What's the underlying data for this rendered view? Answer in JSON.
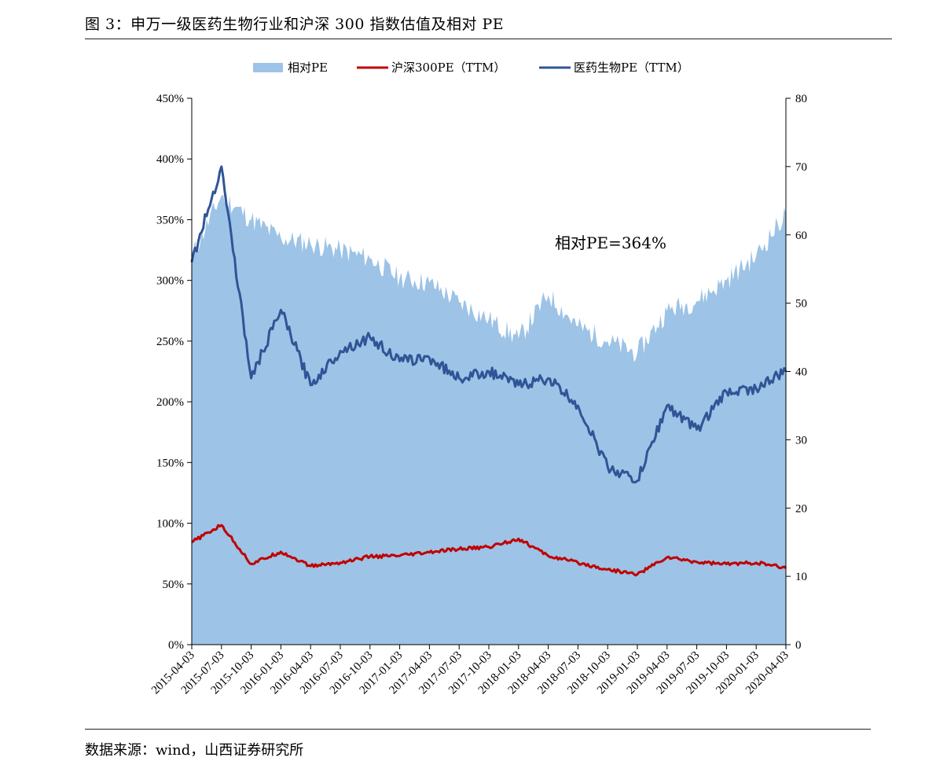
{
  "title": "图 3：申万一级医药生物行业和沪深 300 指数估值及相对 PE",
  "source": "数据来源：wind，山西证券研究所",
  "chart_data": {
    "type": "area",
    "x": [
      "2015-04-03",
      "2015-07-03",
      "2015-10-03",
      "2016-01-03",
      "2016-04-03",
      "2016-07-03",
      "2016-10-03",
      "2017-01-03",
      "2017-04-03",
      "2017-07-03",
      "2017-10-03",
      "2018-01-03",
      "2018-04-03",
      "2018-07-03",
      "2018-10-03",
      "2019-01-03",
      "2019-04-03",
      "2019-07-03",
      "2019-10-03",
      "2020-01-03",
      "2020-04-03"
    ],
    "left_axis": {
      "ylim": [
        0,
        450
      ],
      "ticks": [
        "0%",
        "50%",
        "100%",
        "150%",
        "200%",
        "250%",
        "300%",
        "350%",
        "400%",
        "450%"
      ]
    },
    "right_axis": {
      "ylim": [
        0,
        80
      ],
      "ticks": [
        "0",
        "10",
        "20",
        "30",
        "40",
        "50",
        "60",
        "70",
        "80"
      ]
    },
    "annotation": "相对PE=364%",
    "legend_position": "top-center",
    "series": [
      {
        "name": "相对PE",
        "type": "area",
        "axis": "left",
        "color": "#9DC3E6",
        "values": [
          320,
          370,
          350,
          335,
          330,
          325,
          318,
          302,
          298,
          282,
          268,
          252,
          288,
          262,
          250,
          240,
          275,
          283,
          300,
          320,
          355
        ]
      },
      {
        "name": "沪深300PE（TTM）",
        "type": "line",
        "axis": "right",
        "color": "#C00000",
        "values": [
          15.0,
          17.5,
          11.8,
          13.6,
          11.5,
          12.0,
          12.9,
          13.0,
          13.5,
          14.0,
          14.3,
          15.5,
          13.0,
          12.0,
          11.0,
          10.3,
          12.8,
          12.1,
          11.8,
          12.0,
          11.2
        ]
      },
      {
        "name": "医药生物PE（TTM）",
        "type": "line",
        "axis": "right",
        "color": "#2F5597",
        "values": [
          56.0,
          70.0,
          39.0,
          49.0,
          38.0,
          43.0,
          45.0,
          41.5,
          42.0,
          39.0,
          40.0,
          38.0,
          39.0,
          35.0,
          26.0,
          24.0,
          35.0,
          31.5,
          37.0,
          37.5,
          40.0
        ]
      }
    ]
  }
}
